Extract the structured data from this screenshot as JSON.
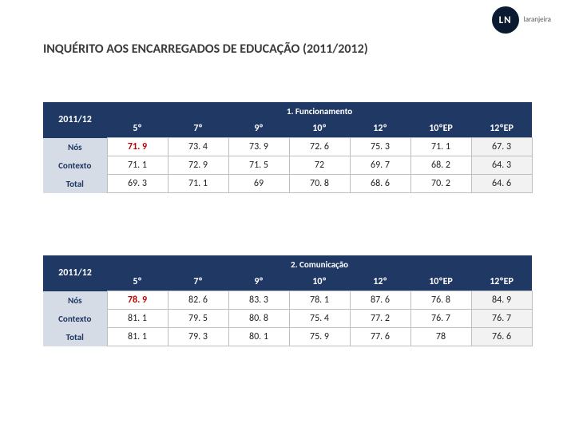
{
  "logo": {
    "initials": "LN",
    "text": "laranjeira"
  },
  "title": "INQUÉRITO AOS ENCARREGADOS DE EDUCAÇÃO (2011/2012)",
  "year_label": "2011/12",
  "columns": [
    "5º",
    "7º",
    "9º",
    "10º",
    "12º",
    "10ºEP",
    "12ºEP"
  ],
  "row_labels": [
    "Nós",
    "Contexto",
    "Total"
  ],
  "tables": [
    {
      "section_title": "1. Funcionamento",
      "rows": [
        {
          "values": [
            "71. 9",
            "73. 4",
            "73. 9",
            "72. 6",
            "75. 3",
            "71. 1",
            "67. 3"
          ],
          "highlight": [
            0
          ],
          "last_col_shade": true
        },
        {
          "values": [
            "71. 1",
            "72. 9",
            "71. 5",
            "72",
            "69. 7",
            "68. 2",
            "64. 3"
          ],
          "highlight": [],
          "last_col_shade": true
        },
        {
          "values": [
            "69. 3",
            "71. 1",
            "69",
            "70. 8",
            "68. 6",
            "70. 2",
            "64. 6"
          ],
          "highlight": [],
          "last_col_shade": true
        }
      ]
    },
    {
      "section_title": "2. Comunicação",
      "rows": [
        {
          "values": [
            "78. 9",
            "82. 6",
            "83. 3",
            "78. 1",
            "87. 6",
            "76. 8",
            "84. 9"
          ],
          "highlight": [
            0
          ],
          "last_col_shade": true
        },
        {
          "values": [
            "81. 1",
            "79. 5",
            "80. 8",
            "75. 4",
            "77. 2",
            "76. 7",
            "76. 7"
          ],
          "highlight": [],
          "last_col_shade": true
        },
        {
          "values": [
            "81. 1",
            "79. 3",
            "80. 1",
            "75. 9",
            "77. 6",
            "78",
            "76. 6"
          ],
          "highlight": [],
          "last_col_shade": true
        }
      ]
    }
  ],
  "colors": {
    "header_bg": "#1f3864",
    "header_fg": "#ffffff",
    "rowlabel_bg": "#d6dce5",
    "rowlabel_fg": "#1f3864",
    "cell_border": "#bfbfbf",
    "highlight_fg": "#c00000",
    "lastcol_bg": "#f2f2f2",
    "logo_bg": "#0a1a2f"
  }
}
